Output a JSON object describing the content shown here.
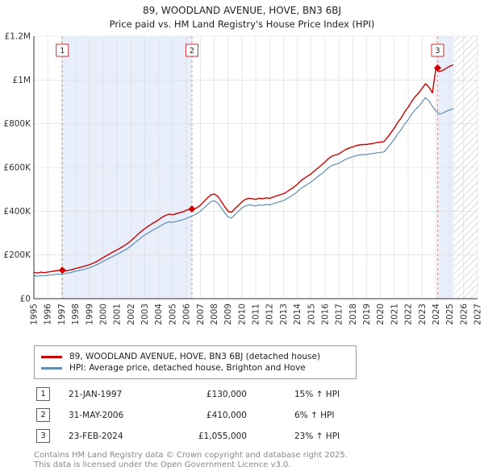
{
  "header": {
    "title": "89, WOODLAND AVENUE, HOVE, BN3 6BJ",
    "subtitle": "Price paid vs. HM Land Registry's House Price Index (HPI)"
  },
  "chart_data": {
    "type": "line",
    "title": "89, WOODLAND AVENUE, HOVE, BN3 6BJ Price paid vs. HPI",
    "x_range": [
      1995,
      2027
    ],
    "y_range": [
      0,
      1200
    ],
    "y_unit": "GBP_thousands",
    "x_tick_start": 1995,
    "x_tick_end": 2027,
    "y_ticks": [
      {
        "value": 0,
        "label": "£0"
      },
      {
        "value": 200,
        "label": "£200K"
      },
      {
        "value": 400,
        "label": "£400K"
      },
      {
        "value": 600,
        "label": "£600K"
      },
      {
        "value": 800,
        "label": "£800K"
      },
      {
        "value": 1000,
        "label": "£1M"
      },
      {
        "value": 1200,
        "label": "£1.2M"
      }
    ],
    "grid_color": "#d9d9d9",
    "sale_line_color": "#e08a8a",
    "marker_color": "#cc0000",
    "x_start": 1995.0,
    "x_step": 0.25,
    "series": [
      {
        "name": "89, WOODLAND AVENUE, HOVE, BN3 6BJ (detached house)",
        "color": "#cc0000",
        "width": 1.4,
        "y": [
          120,
          117,
          121,
          119,
          122,
          124,
          127,
          129,
          130,
          127,
          130,
          133,
          138,
          142,
          146,
          151,
          155,
          162,
          169,
          178,
          188,
          197,
          206,
          215,
          223,
          232,
          242,
          252,
          265,
          279,
          294,
          308,
          320,
          331,
          342,
          351,
          361,
          372,
          381,
          386,
          384,
          388,
          393,
          397,
          404,
          410,
          408,
          416,
          427,
          443,
          459,
          474,
          479,
          469,
          447,
          422,
          400,
          395,
          411,
          427,
          443,
          454,
          459,
          457,
          454,
          459,
          457,
          461,
          459,
          464,
          470,
          475,
          480,
          489,
          500,
          510,
          523,
          539,
          550,
          561,
          571,
          585,
          598,
          611,
          625,
          641,
          652,
          657,
          662,
          673,
          682,
          689,
          694,
          700,
          703,
          705,
          705,
          708,
          710,
          714,
          716,
          718,
          737,
          759,
          780,
          807,
          828,
          855,
          876,
          903,
          924,
          941,
          962,
          983,
          967,
          941,
          1055,
          1038,
          1044,
          1054,
          1063,
          1069
        ]
      },
      {
        "name": "HPI: Average price, detached house, Brighton and Hove",
        "color": "#5f8fb4",
        "width": 1.2,
        "y": [
          105,
          103,
          106,
          104,
          107,
          109,
          111,
          113,
          112,
          115,
          118,
          121,
          125,
          129,
          133,
          137,
          141,
          147,
          154,
          162,
          171,
          179,
          187,
          195,
          203,
          211,
          220,
          229,
          241,
          254,
          267,
          280,
          291,
          301,
          311,
          319,
          328,
          338,
          346,
          351,
          349,
          353,
          357,
          361,
          367,
          374,
          381,
          389,
          399,
          414,
          429,
          443,
          448,
          438,
          418,
          394,
          374,
          369,
          384,
          399,
          414,
          424,
          429,
          427,
          424,
          429,
          427,
          431,
          429,
          434,
          439,
          444,
          449,
          457,
          467,
          477,
          489,
          504,
          514,
          524,
          534,
          547,
          559,
          571,
          584,
          599,
          609,
          614,
          619,
          629,
          637,
          644,
          649,
          654,
          657,
          659,
          659,
          662,
          664,
          667,
          669,
          671,
          689,
          709,
          729,
          754,
          774,
          799,
          819,
          844,
          864,
          879,
          899,
          919,
          904,
          879,
          859,
          844,
          849,
          857,
          864,
          869
        ]
      }
    ],
    "sales": [
      {
        "n": "1",
        "x": 1997.05,
        "y": 130
      },
      {
        "n": "2",
        "x": 2006.4,
        "y": 410
      },
      {
        "n": "3",
        "x": 2024.12,
        "y": 1055
      }
    ],
    "shaded_regions": [
      {
        "x0": 1997.05,
        "x1": 2006.4,
        "color": "#e8eefa"
      },
      {
        "x0": 2024.12,
        "x1": 2025.3,
        "color": "#e8eefa"
      }
    ],
    "hatch_region": {
      "x0": 2025.3,
      "x1": 2027,
      "color": "#bbbbbb"
    }
  },
  "legend": {
    "items": [
      {
        "label": "89, WOODLAND AVENUE, HOVE, BN3 6BJ (detached house)"
      },
      {
        "label": "HPI: Average price, detached house, Brighton and Hove"
      }
    ]
  },
  "sales_table": [
    {
      "num": "1",
      "date": "21-JAN-1997",
      "price": "£130,000",
      "pct": "15% ↑ HPI"
    },
    {
      "num": "2",
      "date": "31-MAY-2006",
      "price": "£410,000",
      "pct": "6% ↑ HPI"
    },
    {
      "num": "3",
      "date": "23-FEB-2024",
      "price": "£1,055,000",
      "pct": "23% ↑ HPI"
    }
  ],
  "footer": {
    "line1": "Contains HM Land Registry data © Crown copyright and database right 2025.",
    "line2": "This data is licensed under the Open Government Licence v3.0."
  }
}
